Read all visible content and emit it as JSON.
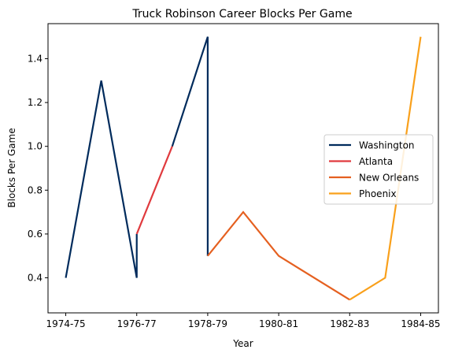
{
  "chart_data": {
    "type": "line",
    "title": "Truck Robinson Career Blocks Per Game",
    "xlabel": "Year",
    "ylabel": "Blocks Per Game",
    "x_tick_labels": [
      "1974-75",
      "1976-77",
      "1978-79",
      "1980-81",
      "1982-83",
      "1984-85"
    ],
    "y_tick_labels": [
      "0.4",
      "0.6",
      "0.8",
      "1.0",
      "1.2",
      "1.4"
    ],
    "ylim": [
      0.24,
      1.56
    ],
    "grid": false,
    "legend_position": "right",
    "series": [
      {
        "name": "Washington",
        "color": "#002b5c",
        "points": [
          {
            "x": "1974-75",
            "y": 0.4
          },
          {
            "x": "1975-76",
            "y": 1.3
          },
          {
            "x": "1976-77",
            "y": 0.4
          },
          {
            "x": "1976-77",
            "y": 0.6
          }
        ]
      },
      {
        "name": "Atlanta",
        "color": "#e03a3e",
        "points": [
          {
            "x": "1976-77",
            "y": 0.6
          },
          {
            "x": "1977-78",
            "y": 1.0
          }
        ]
      },
      {
        "name": "Washington",
        "color": "#002b5c",
        "legend": false,
        "points": [
          {
            "x": "1977-78",
            "y": 1.0
          },
          {
            "x": "1978-79",
            "y": 1.5
          },
          {
            "x": "1978-79",
            "y": 0.5
          }
        ]
      },
      {
        "name": "New Orleans",
        "color": "#e56020",
        "points": [
          {
            "x": "1978-79",
            "y": 0.5
          },
          {
            "x": "1979-80",
            "y": 0.7
          },
          {
            "x": "1980-81",
            "y": 0.5
          },
          {
            "x": "1982-83",
            "y": 0.3
          }
        ]
      },
      {
        "name": "Phoenix",
        "color": "#f9a01b",
        "points": [
          {
            "x": "1982-83",
            "y": 0.3
          },
          {
            "x": "1983-84",
            "y": 0.4
          },
          {
            "x": "1984-85",
            "y": 1.5
          }
        ]
      }
    ]
  }
}
